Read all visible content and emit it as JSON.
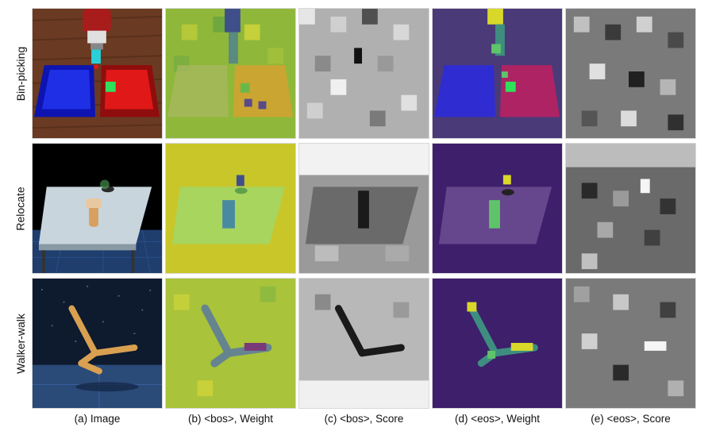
{
  "rows": [
    {
      "label": "Bin-picking"
    },
    {
      "label": "Relocate"
    },
    {
      "label": "Walker-walk"
    }
  ],
  "captions": [
    "(a) Image",
    "(b) <bos>, Weight",
    "(c) <bos>, Score",
    "(d) <eos>, Weight",
    "(e) <eos>, Score"
  ],
  "palette": {
    "bin_blue": "#1f2fe6",
    "bin_red": "#e01818",
    "cube_green": "#2ee05a",
    "viridis_dark": "#3e1f6b",
    "viridis_yellow": "#d9d82a",
    "viridis_green": "#5fc36a",
    "floor_blue": "#1f3e6e",
    "night_sky": "#0e1a2e",
    "wood": "#d8a050"
  }
}
